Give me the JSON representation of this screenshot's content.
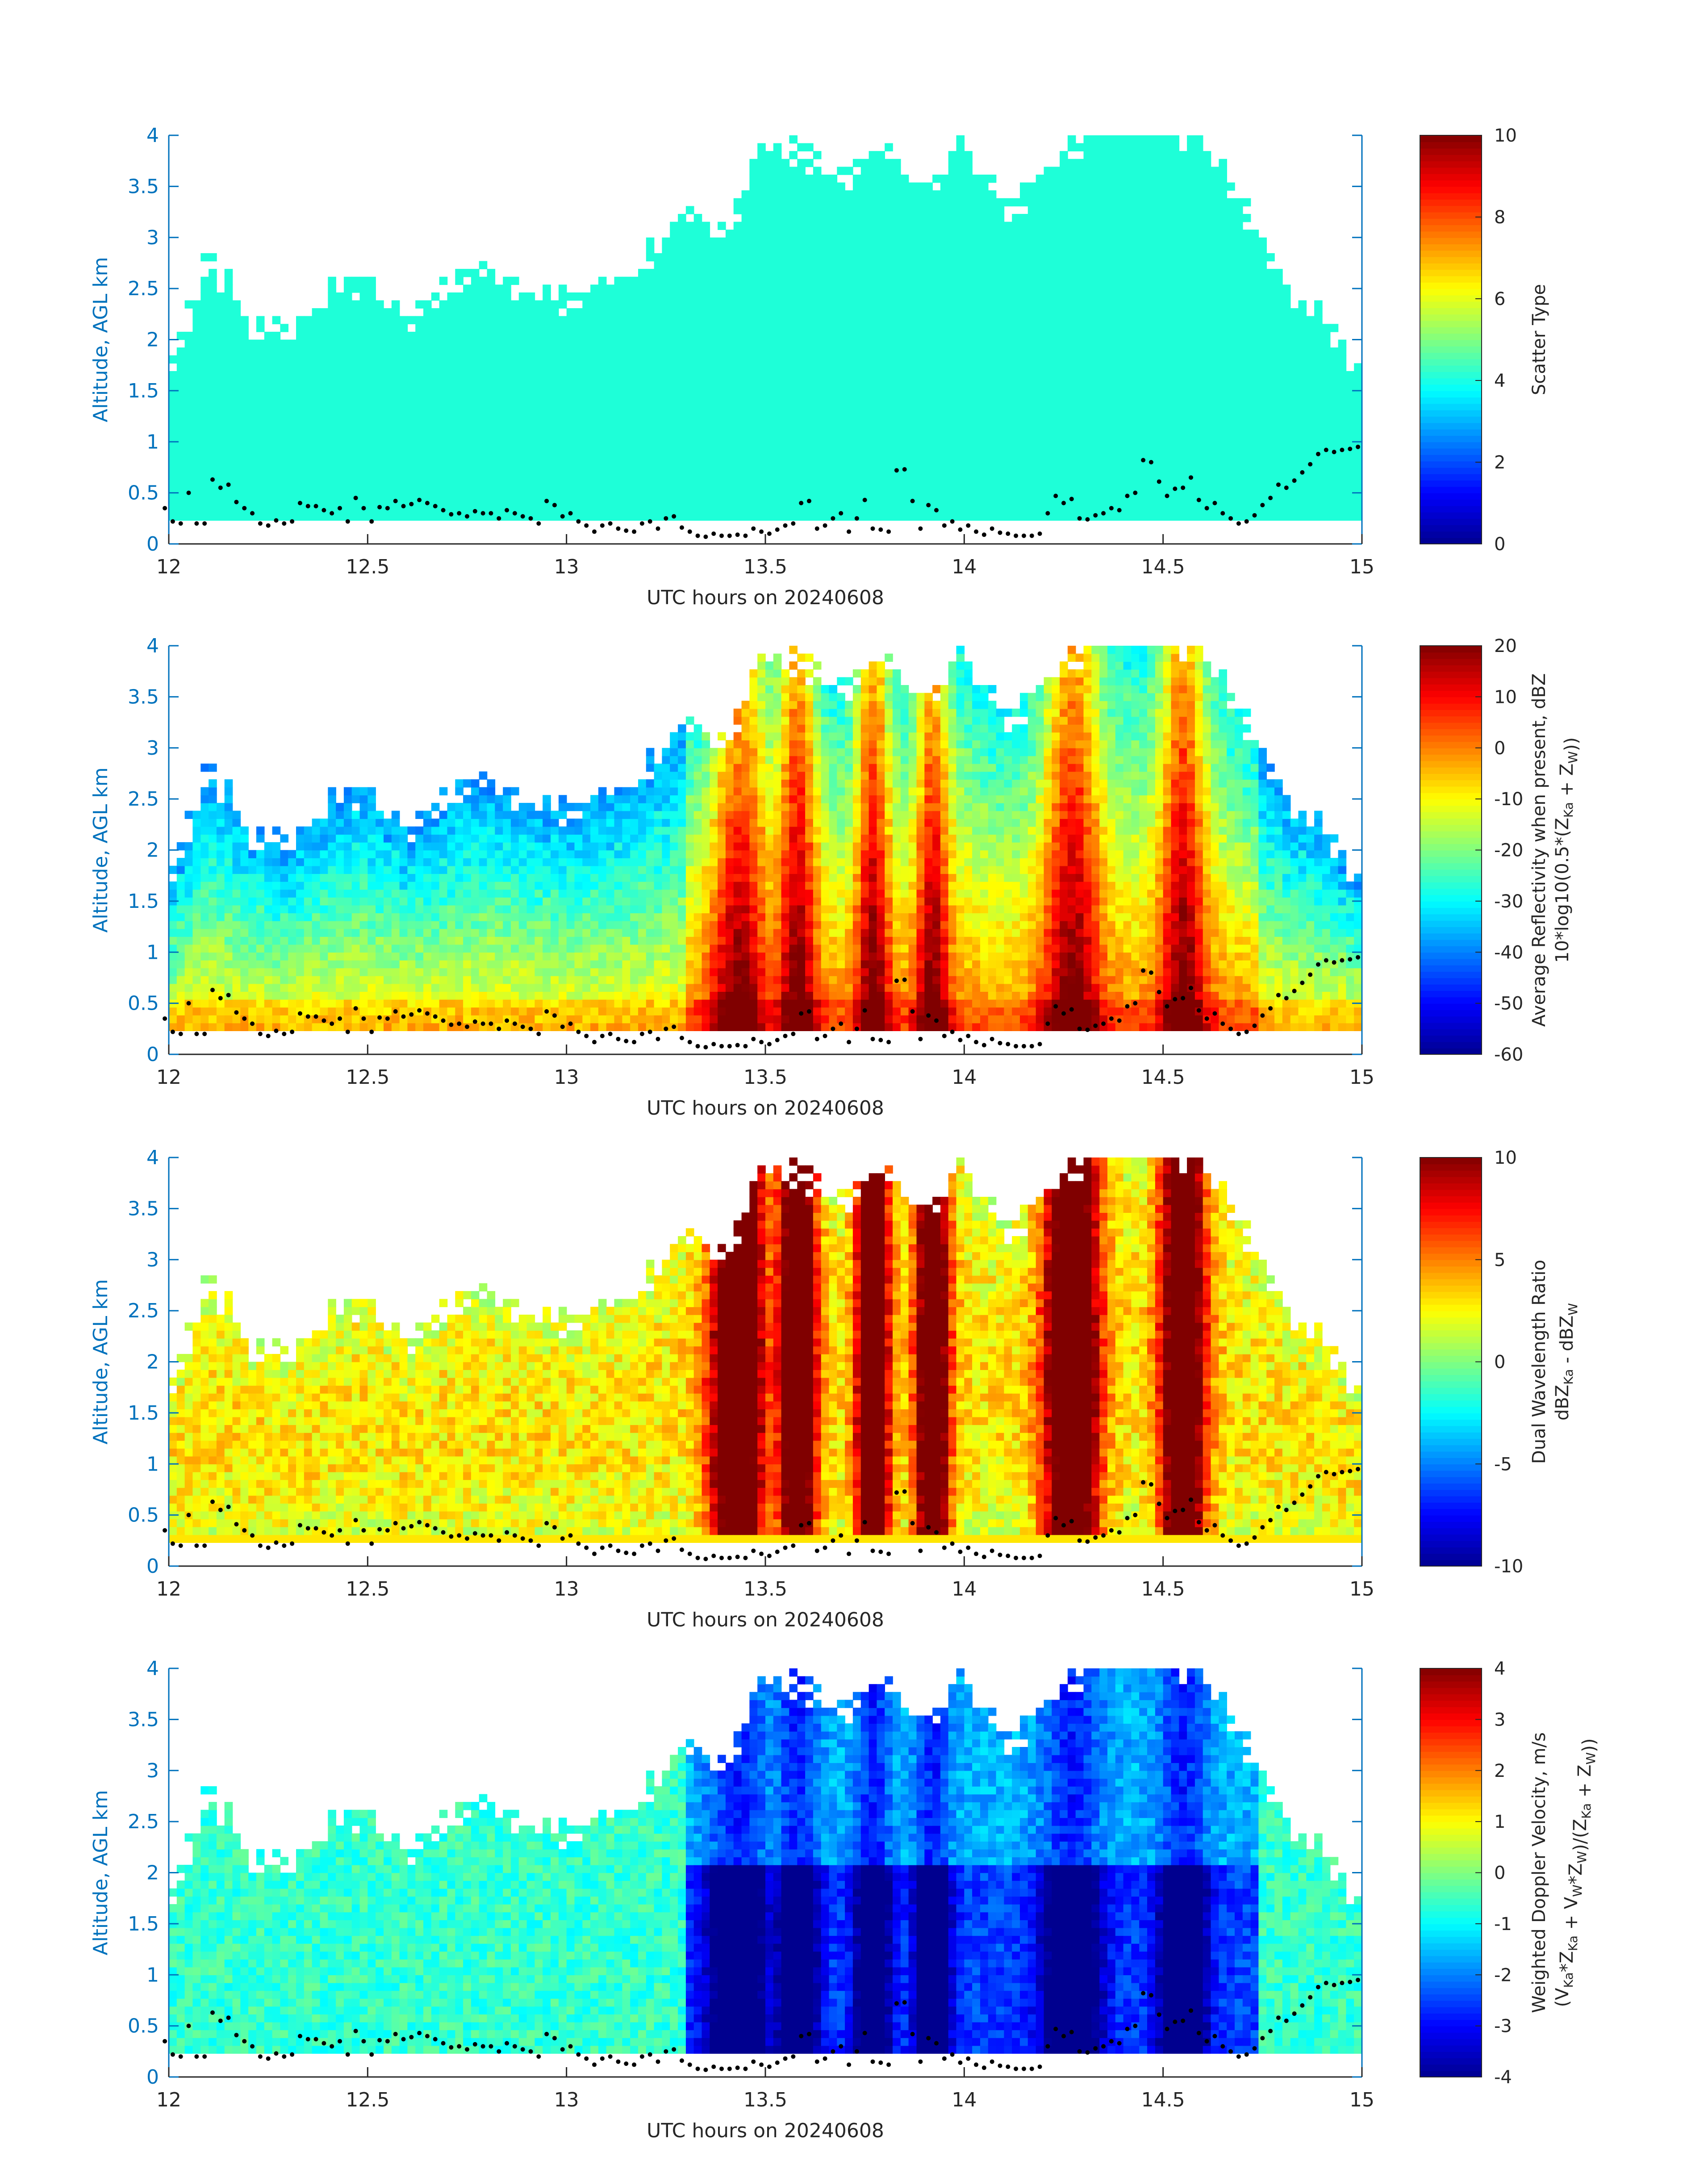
{
  "colors": {
    "axis_y": "#0072BD",
    "axis_x": "#262626",
    "scatter_cyan": "#1EFFD8",
    "points": "#000000",
    "jet": [
      "#00008F",
      "#0000FF",
      "#0080FF",
      "#00FFFF",
      "#80FF80",
      "#FFFF00",
      "#FF8000",
      "#FF0000",
      "#800000"
    ]
  },
  "chart_data": [
    {
      "type": "heatmap",
      "xlabel": "UTC hours on 20240608",
      "ylabel": "Altitude, AGL km",
      "xlim": [
        12,
        15
      ],
      "ylim": [
        0,
        4
      ],
      "xticks": [
        "12",
        "12.5",
        "13",
        "13.5",
        "14",
        "14.5",
        "15"
      ],
      "yticks": [
        "0",
        "0.5",
        "1",
        "1.5",
        "2",
        "2.5",
        "3",
        "3.5",
        "4"
      ],
      "colorbar": {
        "label": "Scatter Type",
        "clim": [
          0,
          10
        ],
        "ticks": [
          "0",
          "2",
          "4",
          "6",
          "8",
          "10"
        ]
      },
      "field": "scatter_type",
      "value_inside_echo": 4
    },
    {
      "type": "heatmap",
      "xlabel": "UTC hours on 20240608",
      "ylabel": "Altitude, AGL km",
      "xlim": [
        12,
        15
      ],
      "ylim": [
        0,
        4
      ],
      "xticks": [
        "12",
        "12.5",
        "13",
        "13.5",
        "14",
        "14.5",
        "15"
      ],
      "yticks": [
        "0",
        "0.5",
        "1",
        "1.5",
        "2",
        "2.5",
        "3",
        "3.5",
        "4"
      ],
      "colorbar": {
        "label_lines": [
          "Average Reflectivity when present, dBZ",
          "10*log10(0.5*(Z",
          "Ka",
          " + Z",
          "W",
          "))"
        ],
        "clim": [
          -60,
          20
        ],
        "ticks": [
          "-60",
          "-50",
          "-40",
          "-30",
          "-20",
          "-10",
          "0",
          "10",
          "20"
        ]
      },
      "field": "reflectivity"
    },
    {
      "type": "heatmap",
      "xlabel": "UTC hours on 20240608",
      "ylabel": "Altitude, AGL km",
      "xlim": [
        12,
        15
      ],
      "ylim": [
        0,
        4
      ],
      "xticks": [
        "12",
        "12.5",
        "13",
        "13.5",
        "14",
        "14.5",
        "15"
      ],
      "yticks": [
        "0",
        "0.5",
        "1",
        "1.5",
        "2",
        "2.5",
        "3",
        "3.5",
        "4"
      ],
      "colorbar": {
        "label_lines": [
          "Dual Wavelength Ratio",
          "dBZ",
          "Ka",
          " - dBZ",
          "W"
        ],
        "clim": [
          -10,
          10
        ],
        "ticks": [
          "-10",
          "-5",
          "0",
          "5",
          "10"
        ]
      },
      "field": "dwr"
    },
    {
      "type": "heatmap",
      "xlabel": "UTC hours on 20240608",
      "ylabel": "Altitude, AGL km",
      "xlim": [
        12,
        15
      ],
      "ylim": [
        0,
        4
      ],
      "xticks": [
        "12",
        "12.5",
        "13",
        "13.5",
        "14",
        "14.5",
        "15"
      ],
      "yticks": [
        "0",
        "0.5",
        "1",
        "1.5",
        "2",
        "2.5",
        "3",
        "3.5",
        "4"
      ],
      "colorbar": {
        "label_lines": [
          "Weighted Doppler Velocity, m/s",
          "(V",
          "Ka",
          "*Z",
          "Ka",
          " + V",
          "W",
          "*Z",
          "W",
          ")/(Z",
          "Ka",
          " + Z",
          "W",
          "))"
        ],
        "clim": [
          -4,
          4
        ],
        "ticks": [
          "-4",
          "-3",
          "-2",
          "-1",
          "0",
          "1",
          "2",
          "3",
          "4"
        ]
      },
      "field": "velocity"
    }
  ],
  "echo_top_km": {
    "x": [
      12.0,
      12.1,
      12.2,
      12.3,
      12.4,
      12.5,
      12.6,
      12.7,
      12.8,
      12.9,
      13.0,
      13.1,
      13.2,
      13.3,
      13.4,
      13.5,
      13.6,
      13.7,
      13.8,
      13.9,
      14.0,
      14.1,
      14.2,
      14.3,
      14.4,
      14.5,
      14.6,
      14.7,
      14.8,
      14.9,
      15.0
    ],
    "y": [
      1.65,
      2.8,
      2.2,
      2.0,
      2.5,
      2.6,
      2.2,
      2.5,
      2.7,
      2.5,
      2.4,
      2.5,
      2.8,
      3.2,
      3.0,
      4.0,
      3.8,
      3.6,
      3.9,
      3.5,
      3.9,
      3.2,
      3.6,
      4.0,
      4.0,
      4.0,
      4.0,
      3.3,
      2.6,
      2.2,
      1.7
    ]
  },
  "base_height_km": 0.2,
  "ground_points": {
    "x": [
      11.99,
      12.01,
      12.03,
      12.05,
      12.07,
      12.09,
      12.11,
      12.13,
      12.15,
      12.17,
      12.19,
      12.21,
      12.23,
      12.25,
      12.27,
      12.29,
      12.31,
      12.33,
      12.35,
      12.37,
      12.39,
      12.41,
      12.43,
      12.45,
      12.47,
      12.49,
      12.51,
      12.53,
      12.55,
      12.57,
      12.59,
      12.61,
      12.63,
      12.65,
      12.67,
      12.69,
      12.71,
      12.73,
      12.75,
      12.77,
      12.79,
      12.81,
      12.83,
      12.85,
      12.87,
      12.89,
      12.91,
      12.93,
      12.95,
      12.97,
      12.99,
      13.01,
      13.03,
      13.05,
      13.07,
      13.09,
      13.11,
      13.13,
      13.15,
      13.17,
      13.19,
      13.21,
      13.23,
      13.25,
      13.27,
      13.29,
      13.31,
      13.33,
      13.35,
      13.37,
      13.39,
      13.41,
      13.43,
      13.45,
      13.47,
      13.49,
      13.51,
      13.53,
      13.55,
      13.57,
      13.59,
      13.61,
      13.63,
      13.65,
      13.67,
      13.69,
      13.71,
      13.73,
      13.75,
      13.77,
      13.79,
      13.81,
      13.83,
      13.85,
      13.87,
      13.89,
      13.91,
      13.93,
      13.95,
      13.97,
      13.99,
      14.01,
      14.03,
      14.05,
      14.07,
      14.09,
      14.11,
      14.13,
      14.15,
      14.17,
      14.19,
      14.21,
      14.23,
      14.25,
      14.27,
      14.29,
      14.31,
      14.33,
      14.35,
      14.37,
      14.39,
      14.41,
      14.43,
      14.45,
      14.47,
      14.49,
      14.51,
      14.53,
      14.55,
      14.57,
      14.59,
      14.61,
      14.63,
      14.65,
      14.67,
      14.69,
      14.71,
      14.73,
      14.75,
      14.77,
      14.79,
      14.81,
      14.83,
      14.85,
      14.87,
      14.89,
      14.91,
      14.93,
      14.95,
      14.97,
      14.99
    ],
    "y": [
      0.35,
      0.22,
      0.2,
      0.5,
      0.2,
      0.2,
      0.63,
      0.55,
      0.58,
      0.41,
      0.35,
      0.3,
      0.2,
      0.18,
      0.23,
      0.2,
      0.22,
      0.4,
      0.37,
      0.37,
      0.33,
      0.3,
      0.35,
      0.22,
      0.45,
      0.35,
      0.22,
      0.36,
      0.35,
      0.42,
      0.37,
      0.39,
      0.43,
      0.4,
      0.37,
      0.33,
      0.29,
      0.3,
      0.27,
      0.32,
      0.3,
      0.3,
      0.25,
      0.33,
      0.3,
      0.27,
      0.25,
      0.2,
      0.42,
      0.38,
      0.27,
      0.3,
      0.22,
      0.18,
      0.12,
      0.18,
      0.2,
      0.15,
      0.13,
      0.12,
      0.2,
      0.22,
      0.15,
      0.25,
      0.27,
      0.16,
      0.12,
      0.08,
      0.07,
      0.1,
      0.08,
      0.08,
      0.09,
      0.08,
      0.15,
      0.12,
      0.1,
      0.14,
      0.18,
      0.2,
      0.4,
      0.42,
      0.15,
      0.18,
      0.25,
      0.3,
      0.12,
      0.25,
      0.43,
      0.15,
      0.14,
      0.12,
      0.72,
      0.73,
      0.42,
      0.15,
      0.38,
      0.33,
      0.18,
      0.22,
      0.14,
      0.18,
      0.12,
      0.09,
      0.15,
      0.11,
      0.1,
      0.08,
      0.08,
      0.08,
      0.1,
      0.3,
      0.47,
      0.4,
      0.44,
      0.25,
      0.24,
      0.28,
      0.3,
      0.35,
      0.33,
      0.47,
      0.5,
      0.82,
      0.8,
      0.61,
      0.47,
      0.54,
      0.55,
      0.65,
      0.43,
      0.35,
      0.4,
      0.3,
      0.25,
      0.2,
      0.22,
      0.28,
      0.38,
      0.45,
      0.58,
      0.55,
      0.62,
      0.7,
      0.78,
      0.88,
      0.92,
      0.9,
      0.92,
      0.93,
      0.95
    ]
  }
}
